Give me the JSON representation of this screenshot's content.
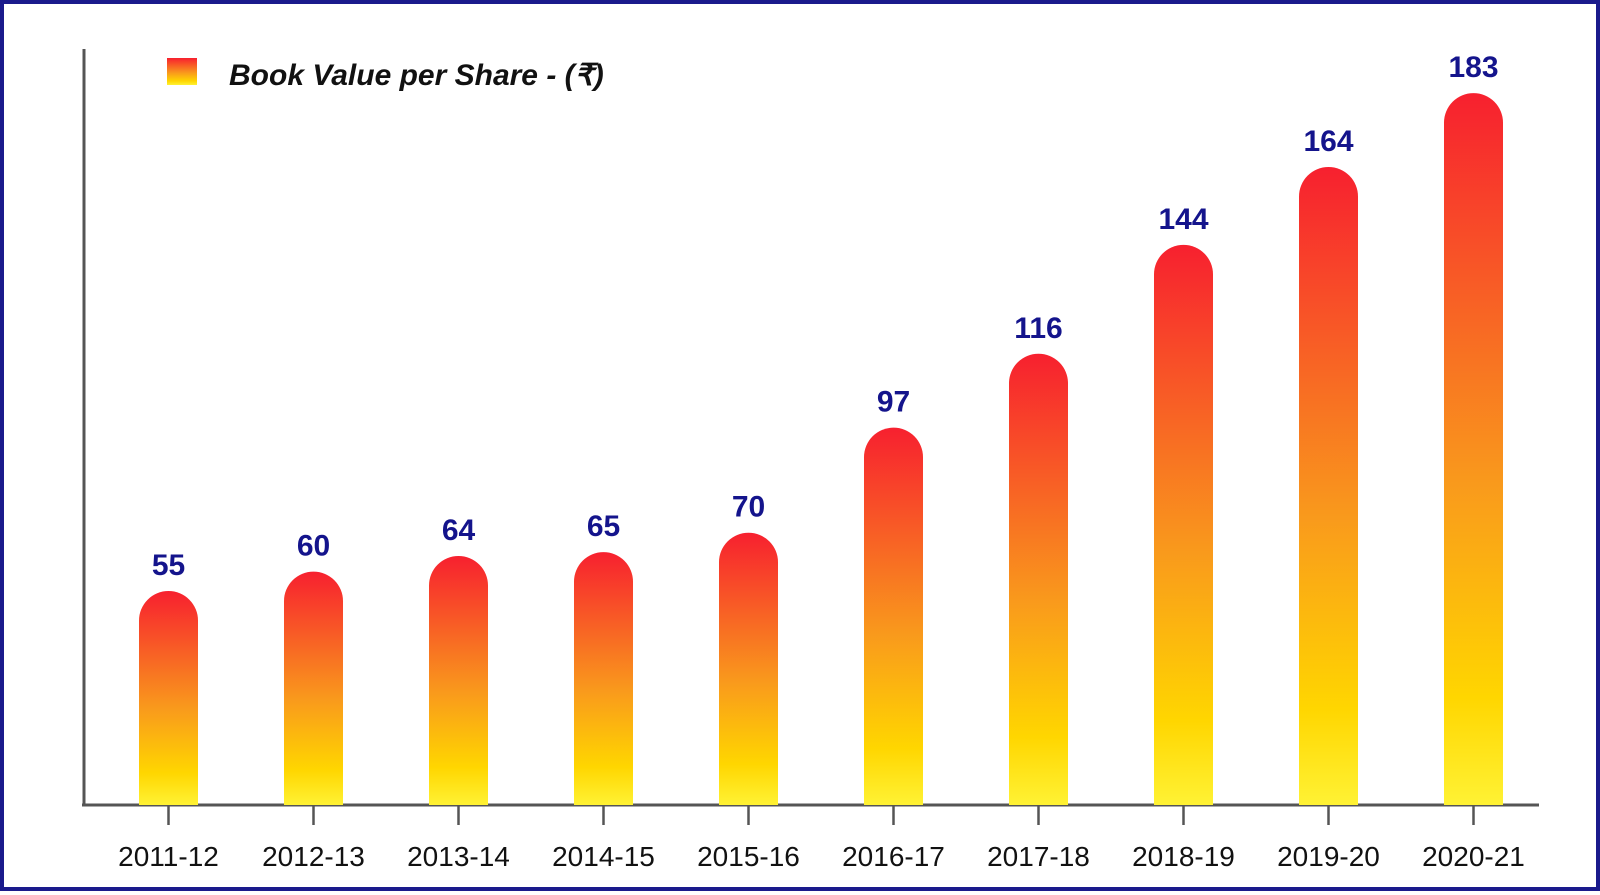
{
  "chart_data": {
    "type": "bar",
    "title": "",
    "xlabel": "",
    "ylabel": "",
    "legend": {
      "position": "top-left",
      "entries": [
        "Book Value per Share - (₹)"
      ]
    },
    "categories": [
      "2011-12",
      "2012-13",
      "2013-14",
      "2014-15",
      "2015-16",
      "2016-17",
      "2017-18",
      "2018-19",
      "2019-20",
      "2020-21"
    ],
    "series": [
      {
        "name": "Book Value per Share - (₹)",
        "values": [
          55,
          60,
          64,
          65,
          70,
          97,
          116,
          144,
          164,
          183
        ]
      }
    ],
    "ylim": [
      0,
      190
    ],
    "grid": false,
    "data_labels": true,
    "colors": {
      "bar_top": "#f7202f",
      "bar_mid": "#f99a1c",
      "bar_bottom": "#ffd600",
      "bar_base": "#fff234",
      "value_label": "#14148c",
      "frame": "#1a1a8c",
      "axis": "#555555"
    }
  }
}
